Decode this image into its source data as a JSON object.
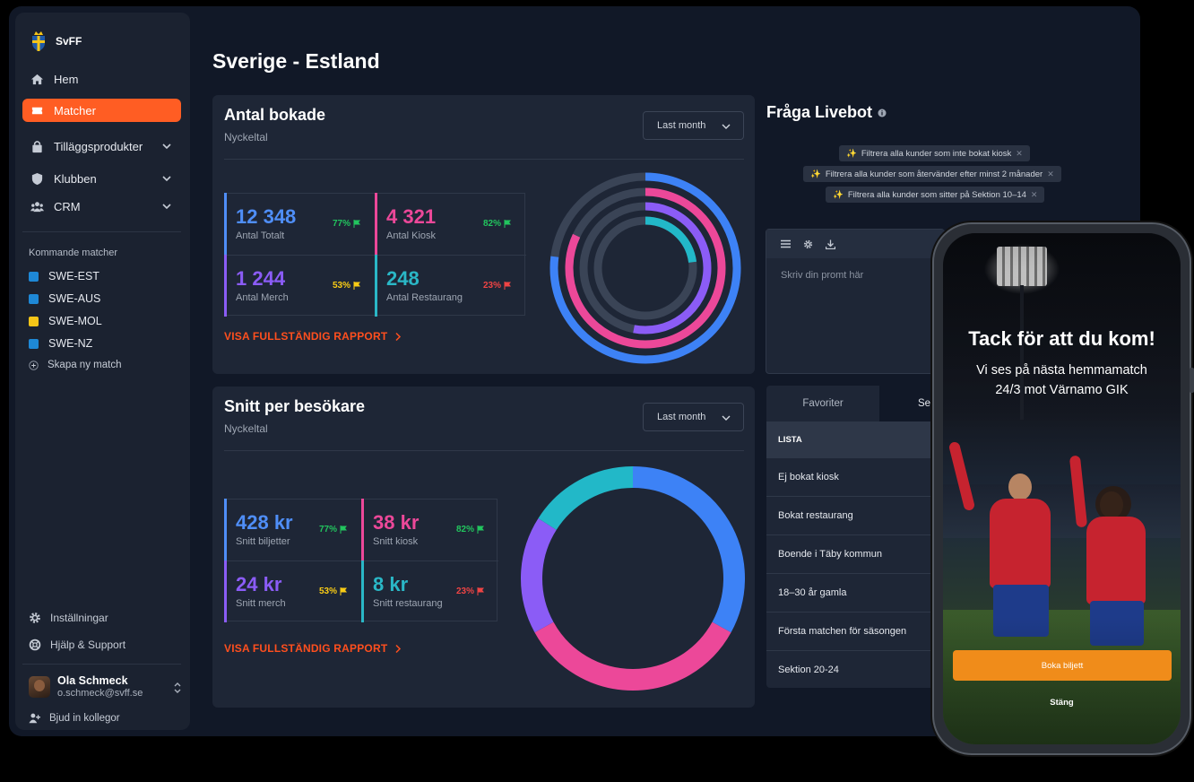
{
  "brand": {
    "name": "SvFF"
  },
  "nav": {
    "items": [
      {
        "label": "Hem",
        "icon": "home-icon"
      },
      {
        "label": "Matcher",
        "icon": "ticket-icon",
        "active": true
      },
      {
        "label": "Tilläggsprodukter",
        "icon": "bag-icon",
        "expandable": true
      },
      {
        "label": "Klubben",
        "icon": "shield-icon",
        "expandable": true
      },
      {
        "label": "CRM",
        "icon": "users-icon",
        "expandable": true
      }
    ]
  },
  "upcoming": {
    "title": "Kommande matcher",
    "matches": [
      {
        "label": "SWE-EST",
        "color": "#1e88d6"
      },
      {
        "label": "SWE-AUS",
        "color": "#1e88d6"
      },
      {
        "label": "SWE-MOL",
        "color": "#f5c518"
      },
      {
        "label": "SWE-NZ",
        "color": "#1e88d6"
      }
    ],
    "new_match": "Skapa ny match"
  },
  "footer": {
    "settings": "Inställningar",
    "help": "Hjälp & Support",
    "user_name": "Ola Schmeck",
    "user_email": "o.schmeck@svff.se",
    "invite": "Bjud in kollegor"
  },
  "page": {
    "title": "Sverige - Estland"
  },
  "bookings": {
    "title": "Antal bokade",
    "subtitle": "Nyckeltal",
    "period": "Last month",
    "report": "VISA FULLSTÄNDIG RAPPORT",
    "stats": [
      {
        "value": "12 348",
        "label": "Antal Totalt",
        "pct": "77%",
        "color": "#4f8ef7",
        "pct_color": "#22c55e"
      },
      {
        "value": "4 321",
        "label": "Antal Kiosk",
        "pct": "82%",
        "color": "#ec4899",
        "pct_color": "#22c55e"
      },
      {
        "value": "1 244",
        "label": "Antal Merch",
        "pct": "53%",
        "color": "#8b5cf6",
        "pct_color": "#facc15"
      },
      {
        "value": "248",
        "label": "Antal Restaurang",
        "pct": "23%",
        "color": "#2ab7c6",
        "pct_color": "#ef4444"
      }
    ],
    "rings": [
      {
        "fraction": 0.77,
        "color": "#3d82f6"
      },
      {
        "fraction": 0.82,
        "color": "#ec4899"
      },
      {
        "fraction": 0.53,
        "color": "#8b5cf6"
      },
      {
        "fraction": 0.23,
        "color": "#22b8c8"
      }
    ]
  },
  "average": {
    "title": "Snitt per besökare",
    "subtitle": "Nyckeltal",
    "period": "Last month",
    "report": "VISA FULLSTÄNDIG RAPPORT",
    "stats": [
      {
        "value": "428 kr",
        "label": "Snitt biljetter",
        "pct": "77%",
        "color": "#4f8ef7",
        "pct_color": "#22c55e"
      },
      {
        "value": "38 kr",
        "label": "Snitt kiosk",
        "pct": "82%",
        "color": "#ec4899",
        "pct_color": "#22c55e"
      },
      {
        "value": "24 kr",
        "label": "Snitt merch",
        "pct": "53%",
        "color": "#8b5cf6",
        "pct_color": "#facc15"
      },
      {
        "value": "8 kr",
        "label": "Snitt restaurang",
        "pct": "23%",
        "color": "#2ab7c6",
        "pct_color": "#ef4444"
      }
    ],
    "donut": [
      {
        "fraction": 0.33,
        "color": "#3d82f6"
      },
      {
        "fraction": 0.34,
        "color": "#ec4899"
      },
      {
        "fraction": 0.17,
        "color": "#8b5cf6"
      },
      {
        "fraction": 0.16,
        "color": "#22b8c8"
      }
    ]
  },
  "livebot": {
    "title": "Fråga Livebot",
    "chips": [
      "Filtrera alla kunder som inte bokat kiosk",
      "Filtrera alla kunder som återvänder efter minst 2 månader",
      "Filtrera alla kunder som sitter på Sektion 10–14"
    ],
    "prompt_placeholder": "Skriv din promt här"
  },
  "lists": {
    "tabs": [
      "Favoriter",
      "Se"
    ],
    "header": "LISTA",
    "rows": [
      "Ej bokat kiosk",
      "Bokat restaurang",
      "Boende i Täby kommun",
      "18–30 år gamla",
      "Första matchen för säsongen",
      "Sektion 20-24"
    ]
  },
  "phone": {
    "headline": "Tack för att du kom!",
    "line1": "Vi ses på nästa hemmamatch",
    "line2": "24/3 mot Värnamo GIK",
    "cta": "Boka biljett",
    "close": "Stäng"
  }
}
